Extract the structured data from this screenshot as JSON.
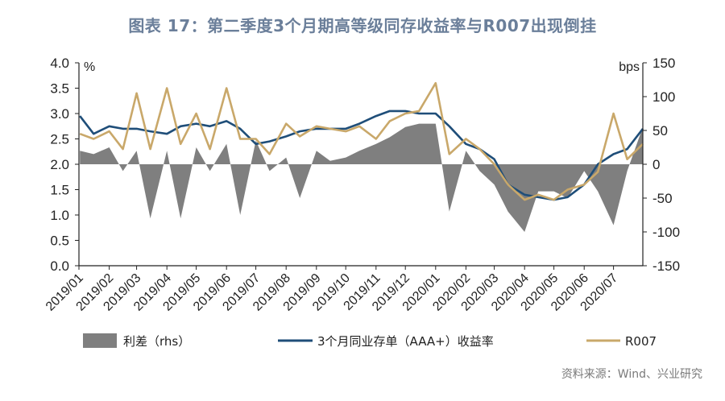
{
  "title": "图表 17：第二季度3个月期高等级同存收益率与R007出现倒挂",
  "source": "资料来源：Wind、兴业研究",
  "colors": {
    "spread": "#7f7f7f",
    "cd_yield": "#1f4e79",
    "r007": "#c9a86a",
    "title": "#6b7f9a"
  },
  "chart_data": {
    "type": "line",
    "left_unit": "%",
    "right_unit": "bps",
    "ylim_left": [
      0.0,
      4.0
    ],
    "ylim_right": [
      -150,
      150
    ],
    "left_ticks": [
      "4.0",
      "3.5",
      "3.0",
      "2.5",
      "2.0",
      "1.5",
      "1.0",
      "0.5",
      "0.0"
    ],
    "right_ticks": [
      "150",
      "100",
      "50",
      "0",
      "-50",
      "-100",
      "-150"
    ],
    "x_labels": [
      "2019/01",
      "2019/02",
      "2019/03",
      "2019/04",
      "2019/05",
      "2019/06",
      "2019/07",
      "2019/08",
      "2019/09",
      "2019/10",
      "2019/11",
      "2019/12",
      "2020/01",
      "2020/02",
      "2020/03",
      "2020/04",
      "2020/05",
      "2020/06",
      "2020/07"
    ],
    "legend": [
      "利差（rhs）",
      "3个月同业存单（AAA+）收益率",
      "R007"
    ],
    "x": [
      "2019-01-02",
      "2019-01-16",
      "2019-02-01",
      "2019-02-15",
      "2019-03-01",
      "2019-03-15",
      "2019-04-01",
      "2019-04-15",
      "2019-05-01",
      "2019-05-15",
      "2019-06-01",
      "2019-06-15",
      "2019-07-01",
      "2019-07-15",
      "2019-08-01",
      "2019-08-15",
      "2019-09-01",
      "2019-09-15",
      "2019-10-01",
      "2019-10-15",
      "2019-11-01",
      "2019-11-15",
      "2019-12-01",
      "2019-12-15",
      "2020-01-01",
      "2020-01-15",
      "2020-02-01",
      "2020-02-15",
      "2020-03-01",
      "2020-03-15",
      "2020-04-01",
      "2020-04-15",
      "2020-05-01",
      "2020-05-15",
      "2020-06-01",
      "2020-06-15",
      "2020-07-01",
      "2020-07-15",
      "2020-07-31"
    ],
    "series": [
      {
        "name": "利差（rhs）",
        "axis": "right",
        "type": "area",
        "values": [
          20,
          15,
          25,
          -10,
          20,
          -80,
          20,
          -80,
          25,
          -10,
          30,
          -75,
          35,
          -10,
          10,
          -50,
          20,
          5,
          10,
          20,
          30,
          40,
          55,
          60,
          60,
          -70,
          20,
          -10,
          -30,
          -70,
          -100,
          -40,
          -40,
          -50,
          -10,
          -40,
          -90,
          -10,
          55
        ]
      },
      {
        "name": "3个月同业存单（AAA+）收益率",
        "axis": "left",
        "values": [
          2.95,
          2.6,
          2.75,
          2.7,
          2.7,
          2.65,
          2.6,
          2.75,
          2.8,
          2.75,
          2.85,
          2.7,
          2.4,
          2.45,
          2.55,
          2.65,
          2.7,
          2.7,
          2.7,
          2.8,
          2.95,
          3.05,
          3.05,
          3.0,
          3.0,
          2.75,
          2.4,
          2.3,
          2.1,
          1.6,
          1.4,
          1.35,
          1.3,
          1.35,
          1.6,
          2.0,
          2.2,
          2.3,
          2.7
        ]
      },
      {
        "name": "R007",
        "axis": "left",
        "values": [
          2.6,
          2.5,
          2.65,
          2.3,
          3.4,
          2.3,
          3.5,
          2.4,
          3.0,
          2.3,
          3.5,
          2.5,
          2.5,
          2.2,
          2.8,
          2.55,
          2.75,
          2.7,
          2.65,
          2.75,
          2.5,
          2.85,
          3.0,
          3.05,
          3.6,
          2.2,
          2.5,
          2.3,
          2.0,
          1.6,
          1.3,
          1.4,
          1.3,
          1.5,
          1.6,
          1.85,
          3.0,
          2.1,
          2.4
        ]
      }
    ]
  }
}
